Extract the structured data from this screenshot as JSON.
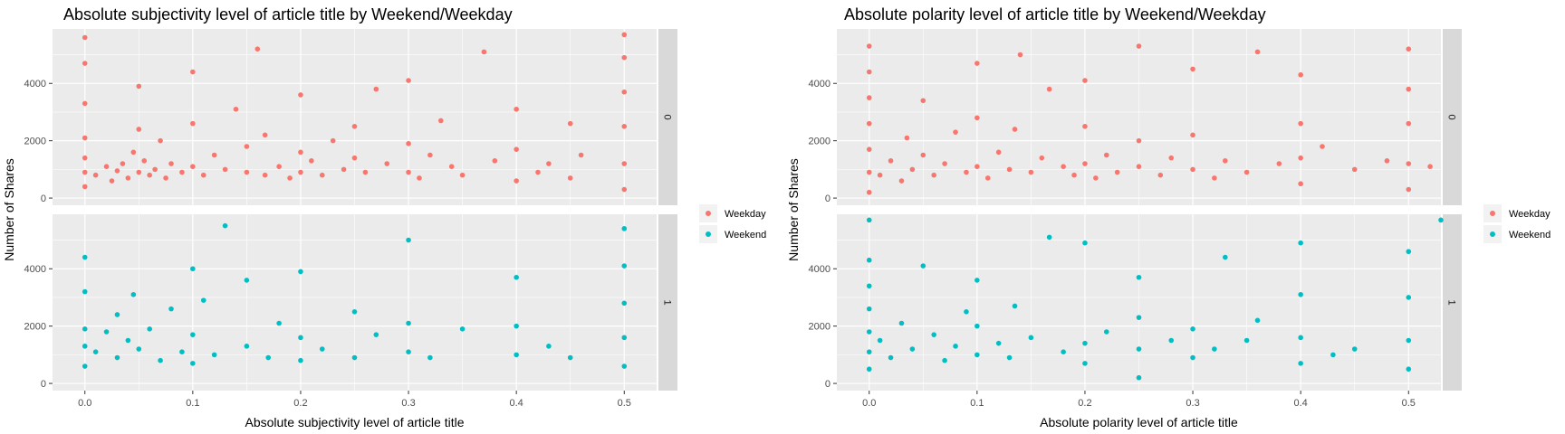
{
  "colors": {
    "Weekday": "#F8766D",
    "Weekend": "#00BFC4",
    "panel_bg": "#EBEBEB",
    "strip_bg": "#D9D9D9",
    "grid": "#FFFFFF"
  },
  "chart_data": [
    {
      "type": "scatter",
      "title": "Absolute subjectivity level of article title by Weekend/Weekday",
      "xlabel": "Absolute subjectivity level of article title",
      "ylabel": "Number of Shares",
      "xlim": [
        -0.03,
        0.53
      ],
      "ylim": [
        -250,
        5900
      ],
      "x_ticks": [
        "0.0",
        "0.1",
        "0.2",
        "0.3",
        "0.4",
        "0.5"
      ],
      "y_ticks": [
        "0",
        "2000",
        "4000"
      ],
      "facets": [
        "0",
        "1"
      ],
      "grid": true,
      "legend_position": "right",
      "series": [
        {
          "name": "Weekday",
          "facet": "0",
          "points": [
            [
              0.0,
              400
            ],
            [
              0.0,
              900
            ],
            [
              0.0,
              1400
            ],
            [
              0.0,
              2100
            ],
            [
              0.0,
              3300
            ],
            [
              0.0,
              4700
            ],
            [
              0.0,
              5600
            ],
            [
              0.01,
              800
            ],
            [
              0.02,
              1100
            ],
            [
              0.025,
              600
            ],
            [
              0.03,
              950
            ],
            [
              0.035,
              1200
            ],
            [
              0.04,
              700
            ],
            [
              0.045,
              1600
            ],
            [
              0.05,
              900
            ],
            [
              0.05,
              2400
            ],
            [
              0.05,
              3900
            ],
            [
              0.055,
              1300
            ],
            [
              0.06,
              800
            ],
            [
              0.065,
              1000
            ],
            [
              0.07,
              2000
            ],
            [
              0.075,
              700
            ],
            [
              0.08,
              1200
            ],
            [
              0.09,
              900
            ],
            [
              0.1,
              1100
            ],
            [
              0.1,
              2600
            ],
            [
              0.1,
              4400
            ],
            [
              0.11,
              800
            ],
            [
              0.12,
              1500
            ],
            [
              0.13,
              1000
            ],
            [
              0.14,
              3100
            ],
            [
              0.15,
              900
            ],
            [
              0.15,
              1800
            ],
            [
              0.16,
              5200
            ],
            [
              0.167,
              800
            ],
            [
              0.167,
              2200
            ],
            [
              0.18,
              1100
            ],
            [
              0.19,
              700
            ],
            [
              0.2,
              900
            ],
            [
              0.2,
              1600
            ],
            [
              0.2,
              3600
            ],
            [
              0.21,
              1300
            ],
            [
              0.22,
              800
            ],
            [
              0.23,
              2000
            ],
            [
              0.24,
              1000
            ],
            [
              0.25,
              1400
            ],
            [
              0.25,
              2500
            ],
            [
              0.26,
              900
            ],
            [
              0.27,
              3800
            ],
            [
              0.28,
              1200
            ],
            [
              0.3,
              900
            ],
            [
              0.3,
              1900
            ],
            [
              0.3,
              4100
            ],
            [
              0.31,
              700
            ],
            [
              0.32,
              1500
            ],
            [
              0.33,
              2700
            ],
            [
              0.34,
              1100
            ],
            [
              0.35,
              800
            ],
            [
              0.37,
              5100
            ],
            [
              0.38,
              1300
            ],
            [
              0.4,
              600
            ],
            [
              0.4,
              1700
            ],
            [
              0.4,
              3100
            ],
            [
              0.42,
              900
            ],
            [
              0.43,
              1200
            ],
            [
              0.45,
              700
            ],
            [
              0.45,
              2600
            ],
            [
              0.46,
              1500
            ],
            [
              0.5,
              300
            ],
            [
              0.5,
              1200
            ],
            [
              0.5,
              2500
            ],
            [
              0.5,
              3700
            ],
            [
              0.5,
              4900
            ],
            [
              0.5,
              5700
            ]
          ]
        },
        {
          "name": "Weekend",
          "facet": "1",
          "points": [
            [
              0.0,
              600
            ],
            [
              0.0,
              1300
            ],
            [
              0.0,
              1900
            ],
            [
              0.0,
              3200
            ],
            [
              0.0,
              4400
            ],
            [
              0.01,
              1100
            ],
            [
              0.02,
              1800
            ],
            [
              0.03,
              900
            ],
            [
              0.03,
              2400
            ],
            [
              0.04,
              1500
            ],
            [
              0.045,
              3100
            ],
            [
              0.05,
              1200
            ],
            [
              0.06,
              1900
            ],
            [
              0.07,
              800
            ],
            [
              0.08,
              2600
            ],
            [
              0.09,
              1100
            ],
            [
              0.1,
              700
            ],
            [
              0.1,
              1700
            ],
            [
              0.1,
              4000
            ],
            [
              0.11,
              2900
            ],
            [
              0.12,
              1000
            ],
            [
              0.13,
              5500
            ],
            [
              0.15,
              1300
            ],
            [
              0.15,
              3600
            ],
            [
              0.17,
              900
            ],
            [
              0.18,
              2100
            ],
            [
              0.2,
              800
            ],
            [
              0.2,
              1600
            ],
            [
              0.2,
              3900
            ],
            [
              0.22,
              1200
            ],
            [
              0.25,
              900
            ],
            [
              0.25,
              2500
            ],
            [
              0.27,
              1700
            ],
            [
              0.3,
              1100
            ],
            [
              0.3,
              2100
            ],
            [
              0.3,
              5000
            ],
            [
              0.32,
              900
            ],
            [
              0.35,
              1900
            ],
            [
              0.4,
              1000
            ],
            [
              0.4,
              2000
            ],
            [
              0.4,
              3700
            ],
            [
              0.43,
              1300
            ],
            [
              0.45,
              900
            ],
            [
              0.5,
              600
            ],
            [
              0.5,
              1600
            ],
            [
              0.5,
              2800
            ],
            [
              0.5,
              4100
            ],
            [
              0.5,
              5400
            ]
          ]
        }
      ]
    },
    {
      "type": "scatter",
      "title": "Absolute polarity level of article title by Weekend/Weekday",
      "xlabel": "Absolute polarity level of article title",
      "ylabel": "Number of Shares",
      "xlim": [
        -0.03,
        0.53
      ],
      "ylim": [
        -250,
        5900
      ],
      "x_ticks": [
        "0.0",
        "0.1",
        "0.2",
        "0.3",
        "0.4",
        "0.5"
      ],
      "y_ticks": [
        "0",
        "2000",
        "4000"
      ],
      "facets": [
        "0",
        "1"
      ],
      "grid": true,
      "legend_position": "right",
      "series": [
        {
          "name": "Weekday",
          "facet": "0",
          "points": [
            [
              0.0,
              200
            ],
            [
              0.0,
              900
            ],
            [
              0.0,
              1700
            ],
            [
              0.0,
              2600
            ],
            [
              0.0,
              3500
            ],
            [
              0.0,
              4400
            ],
            [
              0.0,
              5300
            ],
            [
              0.01,
              800
            ],
            [
              0.02,
              1300
            ],
            [
              0.03,
              600
            ],
            [
              0.035,
              2100
            ],
            [
              0.04,
              1000
            ],
            [
              0.05,
              1500
            ],
            [
              0.05,
              3400
            ],
            [
              0.06,
              800
            ],
            [
              0.07,
              1200
            ],
            [
              0.08,
              2300
            ],
            [
              0.09,
              900
            ],
            [
              0.1,
              1100
            ],
            [
              0.1,
              2800
            ],
            [
              0.1,
              4700
            ],
            [
              0.11,
              700
            ],
            [
              0.12,
              1600
            ],
            [
              0.13,
              1000
            ],
            [
              0.135,
              2400
            ],
            [
              0.14,
              5000
            ],
            [
              0.15,
              900
            ],
            [
              0.16,
              1400
            ],
            [
              0.167,
              3800
            ],
            [
              0.18,
              1100
            ],
            [
              0.19,
              800
            ],
            [
              0.2,
              1200
            ],
            [
              0.2,
              2500
            ],
            [
              0.2,
              4100
            ],
            [
              0.21,
              700
            ],
            [
              0.22,
              1500
            ],
            [
              0.23,
              900
            ],
            [
              0.25,
              1100
            ],
            [
              0.25,
              2000
            ],
            [
              0.25,
              5300
            ],
            [
              0.27,
              800
            ],
            [
              0.28,
              1400
            ],
            [
              0.3,
              1000
            ],
            [
              0.3,
              2200
            ],
            [
              0.3,
              4500
            ],
            [
              0.32,
              700
            ],
            [
              0.33,
              1300
            ],
            [
              0.35,
              900
            ],
            [
              0.36,
              5100
            ],
            [
              0.38,
              1200
            ],
            [
              0.4,
              500
            ],
            [
              0.4,
              1400
            ],
            [
              0.4,
              2600
            ],
            [
              0.4,
              4300
            ],
            [
              0.42,
              1800
            ],
            [
              0.45,
              1000
            ],
            [
              0.48,
              1300
            ],
            [
              0.5,
              300
            ],
            [
              0.5,
              1200
            ],
            [
              0.5,
              2600
            ],
            [
              0.5,
              3800
            ],
            [
              0.5,
              5200
            ],
            [
              0.52,
              1100
            ]
          ]
        },
        {
          "name": "Weekend",
          "facet": "1",
          "points": [
            [
              0.0,
              500
            ],
            [
              0.0,
              1100
            ],
            [
              0.0,
              1800
            ],
            [
              0.0,
              2600
            ],
            [
              0.0,
              3400
            ],
            [
              0.0,
              4300
            ],
            [
              0.0,
              5700
            ],
            [
              0.01,
              1500
            ],
            [
              0.02,
              900
            ],
            [
              0.03,
              2100
            ],
            [
              0.04,
              1200
            ],
            [
              0.05,
              4100
            ],
            [
              0.06,
              1700
            ],
            [
              0.07,
              800
            ],
            [
              0.08,
              1300
            ],
            [
              0.09,
              2500
            ],
            [
              0.1,
              1000
            ],
            [
              0.1,
              2000
            ],
            [
              0.1,
              3600
            ],
            [
              0.12,
              1400
            ],
            [
              0.13,
              900
            ],
            [
              0.135,
              2700
            ],
            [
              0.15,
              1600
            ],
            [
              0.167,
              5100
            ],
            [
              0.18,
              1100
            ],
            [
              0.2,
              700
            ],
            [
              0.2,
              1400
            ],
            [
              0.2,
              4900
            ],
            [
              0.22,
              1800
            ],
            [
              0.25,
              200
            ],
            [
              0.25,
              1200
            ],
            [
              0.25,
              2300
            ],
            [
              0.25,
              3700
            ],
            [
              0.28,
              1500
            ],
            [
              0.3,
              900
            ],
            [
              0.3,
              1900
            ],
            [
              0.32,
              1200
            ],
            [
              0.33,
              4400
            ],
            [
              0.35,
              1500
            ],
            [
              0.36,
              2200
            ],
            [
              0.4,
              700
            ],
            [
              0.4,
              1600
            ],
            [
              0.4,
              3100
            ],
            [
              0.4,
              4900
            ],
            [
              0.43,
              1000
            ],
            [
              0.45,
              1200
            ],
            [
              0.5,
              500
            ],
            [
              0.5,
              1500
            ],
            [
              0.5,
              3000
            ],
            [
              0.5,
              4600
            ],
            [
              0.53,
              5700
            ]
          ]
        }
      ]
    }
  ],
  "legend": [
    {
      "label": "Weekday",
      "color": "#F8766D"
    },
    {
      "label": "Weekend",
      "color": "#00BFC4"
    }
  ]
}
